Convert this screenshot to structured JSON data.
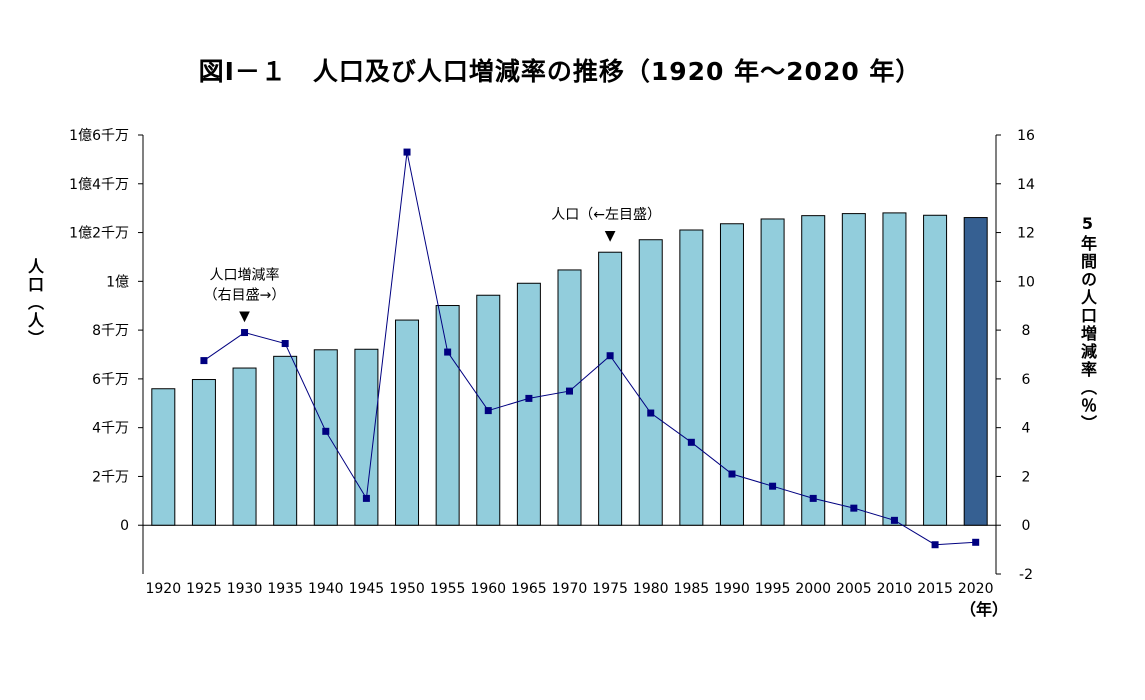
{
  "chart_data": {
    "type": "bar+line",
    "title": "図Ⅰ－１　人口及び人口増減率の推移（1920 年～2020 年）",
    "categories": [
      "1920",
      "1925",
      "1930",
      "1935",
      "1940",
      "1945",
      "1950",
      "1955",
      "1960",
      "1965",
      "1970",
      "1975",
      "1980",
      "1985",
      "1990",
      "1995",
      "2000",
      "2005",
      "2010",
      "2015",
      "2020"
    ],
    "series": [
      {
        "name": "人口（←左目盛）",
        "kind": "bar",
        "axis": "left",
        "values": [
          55960000,
          59740000,
          64450000,
          69250000,
          71930000,
          72150000,
          84120000,
          90080000,
          94300000,
          99210000,
          104670000,
          111940000,
          117060000,
          121050000,
          123610000,
          125570000,
          126930000,
          127770000,
          128060000,
          127090000,
          126150000
        ],
        "color": "#92CDDC",
        "highlight_last_color": "#366092"
      },
      {
        "name": "人口増減率（右目盛→）",
        "kind": "line",
        "axis": "right",
        "values": [
          null,
          6.75,
          7.9,
          7.45,
          3.85,
          1.1,
          15.3,
          7.1,
          4.7,
          5.2,
          5.5,
          6.95,
          4.6,
          3.4,
          2.1,
          1.6,
          1.1,
          0.7,
          0.2,
          -0.8,
          -0.7
        ],
        "color": "#000080"
      }
    ],
    "y_left": {
      "label": "人口（人）",
      "range": [
        -20000000,
        160000000
      ],
      "ticks": [
        {
          "value": 160000000,
          "label": "1億6千万"
        },
        {
          "value": 140000000,
          "label": "1億4千万"
        },
        {
          "value": 120000000,
          "label": "1億2千万"
        },
        {
          "value": 100000000,
          "label": "1億"
        },
        {
          "value": 80000000,
          "label": "8千万"
        },
        {
          "value": 60000000,
          "label": "6千万"
        },
        {
          "value": 40000000,
          "label": "4千万"
        },
        {
          "value": 20000000,
          "label": "2千万"
        },
        {
          "value": 0,
          "label": "0"
        }
      ]
    },
    "y_right": {
      "label": "5年間の人口増減率（％）",
      "range": [
        -2,
        16
      ],
      "ticks": [
        16,
        14,
        12,
        10,
        8,
        6,
        4,
        2,
        0,
        -2
      ]
    },
    "x_unit": "（年）",
    "annotations": [
      {
        "lines": [
          "人口増減率",
          "（右目盛→）"
        ],
        "category": "1930",
        "arrow": "▼"
      },
      {
        "lines": [
          "人口（←左目盛）"
        ],
        "category": "1975",
        "arrow": "▼"
      }
    ],
    "grid": false,
    "legend": "none"
  }
}
